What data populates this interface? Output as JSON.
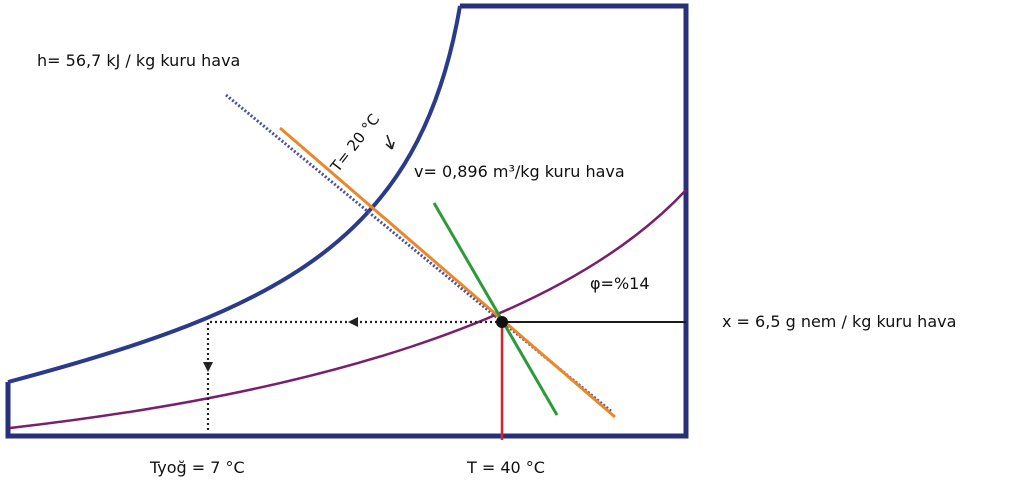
{
  "labels": {
    "enthalpy": "h= 56,7 kJ / kg kuru hava",
    "temp_20": "T= 20 °C",
    "volume": "v= 0,896 m³/kg kuru hava",
    "humidity": "φ=%14",
    "moisture": "x = 6,5 g nem / kg kuru hava",
    "dew_point": "Tyoğ = 7 °C",
    "temp_40": "T = 40 °C"
  },
  "colors": {
    "frame": "#28307a",
    "saturation_curve": "#2c3a8c",
    "relative_humidity_curve": "#7a1e6e",
    "enthalpy_line": "#4a50a0",
    "temperature_line": "#e8882a",
    "volume_line": "#2c9a3a",
    "dry_bulb_line": "#d8242a",
    "moisture_line": "#1a1a1a",
    "state_point": "#111111"
  }
}
